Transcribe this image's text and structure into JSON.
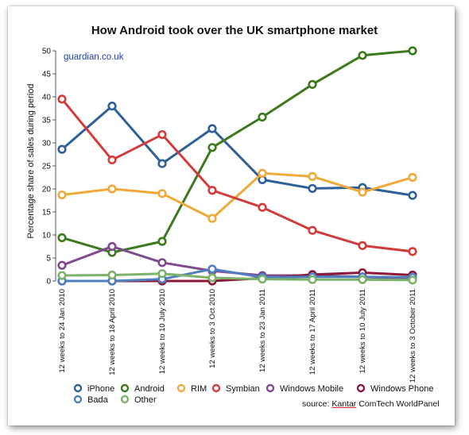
{
  "page": {
    "title": "How Android took over the UK smartphone market",
    "watermark": "guardian.co.uk",
    "source_prefix": "source: ",
    "source_name": "Kantar",
    "source_suffix": " ComTech WorldPanel"
  },
  "chart_data": {
    "type": "line",
    "title": "How Android took over the UK smartphone market",
    "ylabel": "Percentage share of sales during period",
    "xlabel": "",
    "ylim": [
      0,
      50
    ],
    "yticks": [
      0,
      5,
      10,
      15,
      20,
      25,
      30,
      35,
      40,
      45,
      50
    ],
    "grid": false,
    "legend_position": "bottom",
    "categories": [
      "12 weeks to 24 Jan 2010",
      "12 weeks to 18 April 2010",
      "12 weeks to 10 July 2010",
      "12 weeks to 3 Oct 2010",
      "12 weeks to 23 Jan 2011",
      "12 weeks to 17 April 2011",
      "12 weeks to 10 July 2011",
      "12 weeks to 3 October 2011"
    ],
    "series": [
      {
        "name": "iPhone",
        "color": "#2f6199",
        "values": [
          28.6,
          38,
          25.5,
          33.1,
          22,
          20.1,
          20.3,
          18.6
        ]
      },
      {
        "name": "Android",
        "color": "#3d7a1c",
        "values": [
          9.4,
          6.2,
          8.6,
          29,
          35.6,
          42.7,
          49,
          50
        ]
      },
      {
        "name": "RIM",
        "color": "#f0a93a",
        "values": [
          18.7,
          20,
          19,
          13.6,
          23.4,
          22.7,
          19.3,
          22.5
        ]
      },
      {
        "name": "Symbian",
        "color": "#d13c3c",
        "values": [
          39.5,
          26.3,
          31.8,
          19.7,
          16,
          11,
          7.7,
          6.4
        ]
      },
      {
        "name": "Windows Mobile",
        "color": "#7f4a8e",
        "values": [
          3.4,
          7.5,
          4,
          2.2,
          1.2,
          1.2,
          0.9,
          0.4
        ]
      },
      {
        "name": "Windows Phone",
        "color": "#8b1a3a",
        "values": [
          0,
          0,
          0,
          0,
          0.6,
          1.4,
          1.8,
          1.3
        ]
      },
      {
        "name": "Bada",
        "color": "#4f7fbf",
        "values": [
          0,
          0,
          0.4,
          2.6,
          0.8,
          0.9,
          0.9,
          0.8
        ]
      },
      {
        "name": "Other",
        "color": "#7cb36b",
        "values": [
          1.2,
          1.3,
          1.6,
          0.7,
          0.4,
          0.3,
          0.3,
          0.2
        ]
      }
    ],
    "source": "source: Kantar ComTech WorldPanel"
  },
  "legend": {
    "row1": [
      "iPhone",
      "Android",
      "RIM",
      "Symbian",
      "Windows Mobile",
      "Windows Phone"
    ],
    "row2": [
      "Bada",
      "Other"
    ]
  }
}
